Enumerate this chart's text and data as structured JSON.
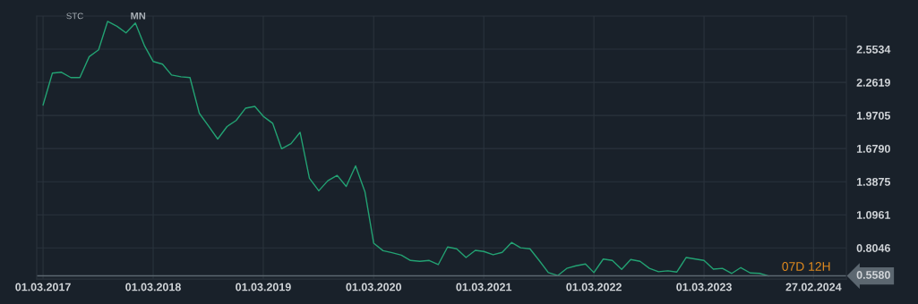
{
  "chart_data": {
    "type": "line",
    "x": [
      "2017-03",
      "2017-04",
      "2017-05",
      "2017-06",
      "2017-07",
      "2017-08",
      "2017-09",
      "2017-10",
      "2017-11",
      "2017-12",
      "2018-01",
      "2018-02",
      "2018-03",
      "2018-04",
      "2018-05",
      "2018-06",
      "2018-07",
      "2018-08",
      "2018-09",
      "2018-10",
      "2018-11",
      "2018-12",
      "2019-01",
      "2019-02",
      "2019-03",
      "2019-04",
      "2019-05",
      "2019-06",
      "2019-07",
      "2019-08",
      "2019-09",
      "2019-10",
      "2019-11",
      "2019-12",
      "2020-01",
      "2020-02",
      "2020-03",
      "2020-04",
      "2020-05",
      "2020-06",
      "2020-07",
      "2020-08",
      "2020-09",
      "2020-10",
      "2020-11",
      "2020-12",
      "2021-01",
      "2021-02",
      "2021-03",
      "2021-04",
      "2021-05",
      "2021-06",
      "2021-07",
      "2021-08",
      "2021-09",
      "2021-10",
      "2021-11",
      "2021-12",
      "2022-01",
      "2022-02",
      "2022-03",
      "2022-04",
      "2022-05",
      "2022-06",
      "2022-07",
      "2022-08",
      "2022-09",
      "2022-10",
      "2022-11",
      "2022-12",
      "2023-01",
      "2023-02",
      "2023-03",
      "2023-04",
      "2023-05",
      "2023-06",
      "2023-07",
      "2023-08",
      "2023-09",
      "2023-10"
    ],
    "series": [
      {
        "color": "#23a273",
        "values": [
          2.062,
          2.343,
          2.351,
          2.304,
          2.304,
          2.488,
          2.548,
          2.798,
          2.756,
          2.698,
          2.784,
          2.58,
          2.446,
          2.422,
          2.327,
          2.311,
          2.304,
          1.989,
          1.876,
          1.763,
          1.873,
          1.926,
          2.034,
          2.05,
          1.963,
          1.902,
          1.677,
          1.722,
          1.822,
          1.417,
          1.307,
          1.396,
          1.443,
          1.346,
          1.527,
          1.299,
          0.846,
          0.78,
          0.762,
          0.741,
          0.694,
          0.686,
          0.694,
          0.657,
          0.812,
          0.797,
          0.72,
          0.783,
          0.773,
          0.744,
          0.765,
          0.852,
          0.805,
          0.797,
          0.692,
          0.587,
          0.561,
          0.624,
          0.647,
          0.663,
          0.587,
          0.706,
          0.694,
          0.616,
          0.702,
          0.686,
          0.624,
          0.595,
          0.603,
          0.592,
          0.72,
          0.706,
          0.694,
          0.618,
          0.624,
          0.58,
          0.631,
          0.584,
          0.58,
          0.558
        ]
      }
    ],
    "xlim": [
      "2017-02-08",
      "2024-06-15"
    ],
    "xticks": [
      {
        "value": "2017-03-01",
        "label": "01.03.2017"
      },
      {
        "value": "2018-03-01",
        "label": "01.03.2018"
      },
      {
        "value": "2019-03-01",
        "label": "01.03.2019"
      },
      {
        "value": "2020-03-01",
        "label": "01.03.2020"
      },
      {
        "value": "2021-03-01",
        "label": "01.03.2021"
      },
      {
        "value": "2022-03-01",
        "label": "01.03.2022"
      },
      {
        "value": "2023-03-01",
        "label": "01.03.2023"
      },
      {
        "value": "2024-02-27",
        "label": "27.02.2024"
      }
    ],
    "ylim": [
      0.53,
      2.845
    ],
    "yticks": [
      0.8046,
      1.0961,
      1.3875,
      {
        "value": 1.679,
        "label": "1.6790"
      },
      1.9705,
      2.2619,
      2.5534
    ],
    "ref_lines": [
      {
        "axis": "y",
        "value": 0.558,
        "label": "0.5580",
        "color": "#5c6770"
      }
    ],
    "annotations": [
      "STC",
      "MN",
      "07D 12H"
    ],
    "grid": true,
    "legend": false,
    "marker": "none",
    "line_style": "solid"
  }
}
